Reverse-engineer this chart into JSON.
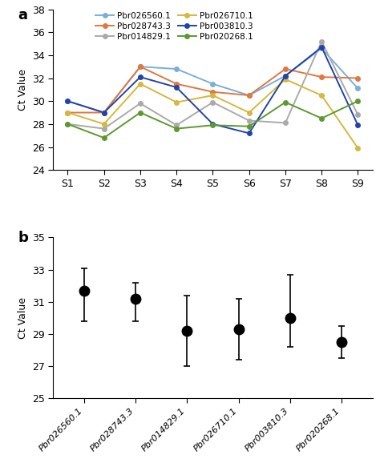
{
  "panel_a": {
    "x_labels": [
      "S1",
      "S2",
      "S3",
      "S4",
      "S5",
      "S6",
      "S7",
      "S8",
      "S9"
    ],
    "series": [
      {
        "name": "Pbr026560.1",
        "color": "#7ab0d8",
        "values": [
          30.0,
          29.0,
          33.0,
          32.8,
          31.5,
          30.5,
          32.2,
          34.6,
          31.1
        ]
      },
      {
        "name": "Pbr028743.3",
        "color": "#e07840",
        "values": [
          29.0,
          29.0,
          33.0,
          31.5,
          30.8,
          30.5,
          32.8,
          32.1,
          32.0
        ]
      },
      {
        "name": "Pbr014829.1",
        "color": "#aaaaaa",
        "values": [
          28.0,
          27.6,
          29.8,
          27.9,
          29.9,
          28.3,
          28.1,
          35.2,
          28.8
        ]
      },
      {
        "name": "Pbr026710.1",
        "color": "#d4b840",
        "values": [
          29.0,
          28.0,
          31.5,
          29.9,
          30.5,
          29.0,
          31.9,
          30.5,
          25.9
        ]
      },
      {
        "name": "Pbr003810.3",
        "color": "#2244aa",
        "values": [
          30.0,
          29.0,
          32.1,
          31.2,
          28.0,
          27.2,
          32.2,
          34.7,
          27.9
        ]
      },
      {
        "name": "Pbr020268.1",
        "color": "#5c9930",
        "values": [
          28.0,
          26.8,
          29.0,
          27.6,
          27.9,
          27.8,
          29.9,
          28.5,
          30.0
        ]
      }
    ],
    "ylim": [
      24,
      38
    ],
    "yticks": [
      24,
      26,
      28,
      30,
      32,
      34,
      36,
      38
    ],
    "ylabel": "Ct Value",
    "panel_label": "a"
  },
  "panel_b": {
    "x_labels": [
      "Pbr026560.1",
      "Pbr028743.3",
      "Pbr014829.1",
      "Pbr026710.1",
      "Pbr003810.3",
      "Pbr020268.1"
    ],
    "means": [
      31.7,
      31.2,
      29.2,
      29.3,
      30.0,
      28.5
    ],
    "errors_upper": [
      1.4,
      1.0,
      2.2,
      1.9,
      2.7,
      1.0
    ],
    "errors_lower": [
      1.9,
      1.4,
      2.2,
      1.9,
      1.8,
      1.0
    ],
    "ylim": [
      25,
      35
    ],
    "yticks": [
      25,
      27,
      29,
      31,
      33,
      35
    ],
    "ylabel": "Ct Value",
    "panel_label": "b"
  }
}
